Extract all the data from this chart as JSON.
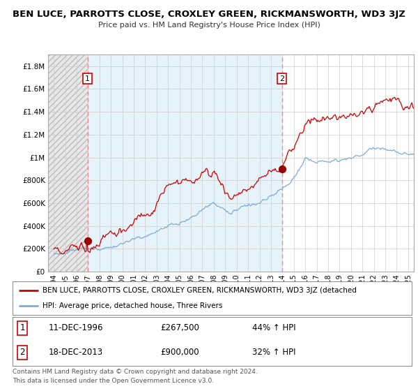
{
  "title": "BEN LUCE, PARROTTS CLOSE, CROXLEY GREEN, RICKMANSWORTH, WD3 3JZ",
  "subtitle": "Price paid vs. HM Land Registry's House Price Index (HPI)",
  "ylabel_ticks": [
    "£0",
    "£200K",
    "£400K",
    "£600K",
    "£800K",
    "£1M",
    "£1.2M",
    "£1.4M",
    "£1.6M",
    "£1.8M"
  ],
  "ytick_values": [
    0,
    200000,
    400000,
    600000,
    800000,
    1000000,
    1200000,
    1400000,
    1600000,
    1800000
  ],
  "ylim": [
    0,
    1900000
  ],
  "xlim_start": 1993.5,
  "xlim_end": 2025.5,
  "xticks": [
    1994,
    1995,
    1996,
    1997,
    1998,
    1999,
    2000,
    2001,
    2002,
    2003,
    2004,
    2005,
    2006,
    2007,
    2008,
    2009,
    2010,
    2011,
    2012,
    2013,
    2014,
    2015,
    2016,
    2017,
    2018,
    2019,
    2020,
    2021,
    2022,
    2023,
    2024,
    2025
  ],
  "sale1_x": 1996.95,
  "sale1_y": 267500,
  "sale1_label": "1",
  "sale1_date": "11-DEC-1996",
  "sale1_price": "£267,500",
  "sale1_hpi": "44% ↑ HPI",
  "sale2_x": 2013.96,
  "sale2_y": 900000,
  "sale2_label": "2",
  "sale2_date": "18-DEC-2013",
  "sale2_price": "£900,000",
  "sale2_hpi": "32% ↑ HPI",
  "vline1_x": 1996.95,
  "vline2_x": 2013.96,
  "line_color_price": "#cc0000",
  "line_color_hpi": "#7aadda",
  "dot_color": "#990000",
  "vline_color": "#ee8888",
  "grid_color": "#cccccc",
  "bg_between": "#ddeeff",
  "bg_hatch_color": "#e0e0e0",
  "legend_line1": "BEN LUCE, PARROTTS CLOSE, CROXLEY GREEN, RICKMANSWORTH, WD3 3JZ (detached",
  "legend_line2": "HPI: Average price, detached house, Three Rivers",
  "footer1": "Contains HM Land Registry data © Crown copyright and database right 2024.",
  "footer2": "This data is licensed under the Open Government Licence v3.0.",
  "annotation_box_color": "#cc0000"
}
